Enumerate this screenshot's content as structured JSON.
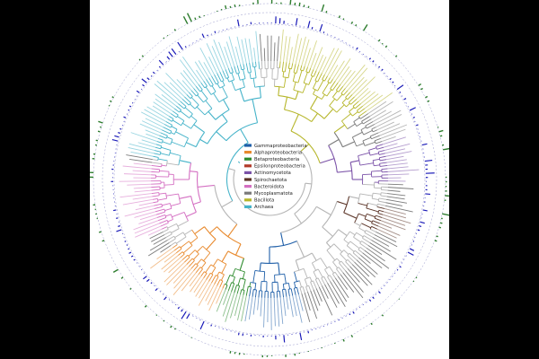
{
  "figure": {
    "background": "#ffffff",
    "outer_background": "#000000"
  },
  "legend": {
    "items": [
      {
        "label": "Gammaproteobacteria",
        "color": "#1f5fa8"
      },
      {
        "label": "Alphaproteobacteria",
        "color": "#e88a2e"
      },
      {
        "label": "Betaproteobacteria",
        "color": "#2c8a2c"
      },
      {
        "label": "Epsilonproteobacteria",
        "color": "#b23a2a"
      },
      {
        "label": "Actinomycetota",
        "color": "#7b52a8"
      },
      {
        "label": "Spirochaetota",
        "color": "#5a3326"
      },
      {
        "label": "Bacteroidota",
        "color": "#d46fc2"
      },
      {
        "label": "Mycoplasmatota",
        "color": "#7a7a7a"
      },
      {
        "label": "Bacillota",
        "color": "#b6b62a"
      },
      {
        "label": "Archaea",
        "color": "#45b3c9"
      }
    ]
  },
  "tree": {
    "tip_count": 240,
    "clades": [
      {
        "name": "Archaea",
        "color": "#45b3c9",
        "start_deg": 280,
        "end_deg": 355
      },
      {
        "name": "Bacillota",
        "color": "#b6b62a",
        "start_deg": 5,
        "end_deg": 55
      },
      {
        "name": "Mycoplasmatota",
        "color": "#7a7a7a",
        "start_deg": 55,
        "end_deg": 72
      },
      {
        "name": "Actinomycetota",
        "color": "#7b52a8",
        "start_deg": 72,
        "end_deg": 92
      },
      {
        "name": "Spirochaetota",
        "color": "#5a3326",
        "start_deg": 104,
        "end_deg": 116
      },
      {
        "name": "Gammaproteobacteria",
        "color": "#1f5fa8",
        "start_deg": 165,
        "end_deg": 190
      },
      {
        "name": "Betaproteobacteria",
        "color": "#2c8a2c",
        "start_deg": 190,
        "end_deg": 203
      },
      {
        "name": "Alphaproteobacteria",
        "color": "#e88a2e",
        "start_deg": 203,
        "end_deg": 235
      },
      {
        "name": "Bacteroidota",
        "color": "#d46fc2",
        "start_deg": 245,
        "end_deg": 278
      }
    ]
  },
  "rings": {
    "inner_bars_color": "#1a1ab8",
    "outer_bars_color": "#2e7d2e",
    "dashed_ring_color": "#9999cc"
  }
}
